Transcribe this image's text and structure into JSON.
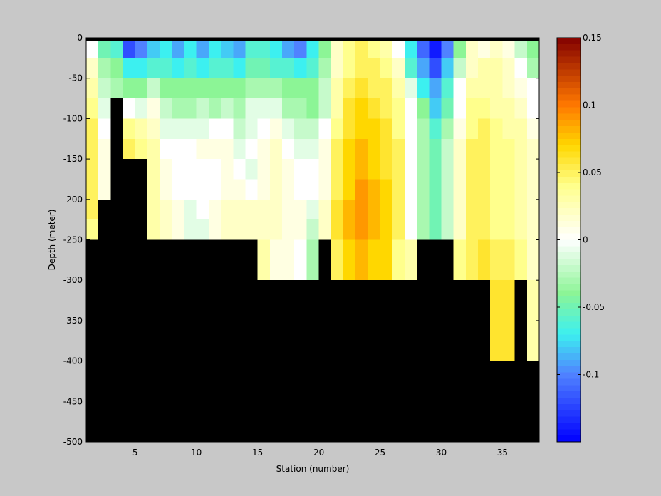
{
  "chart_data": {
    "type": "heatmap",
    "title": "",
    "xlabel": "Station (number)",
    "ylabel": "Depth (meter)",
    "x_range": [
      1,
      38
    ],
    "y_range": [
      -500,
      0
    ],
    "x_ticks": [
      5,
      10,
      15,
      20,
      25,
      30,
      35
    ],
    "y_ticks": [
      0,
      -50,
      -100,
      -150,
      -200,
      -250,
      -300,
      -350,
      -400,
      -450,
      -500
    ],
    "x_tick_labels": [
      "5",
      "10",
      "15",
      "20",
      "25",
      "30",
      "35"
    ],
    "y_tick_labels": [
      "0",
      "-50",
      "-100",
      "-150",
      "-200",
      "-250",
      "-300",
      "-350",
      "-400",
      "-450",
      "-500"
    ],
    "colorbar": {
      "range": [
        -0.15,
        0.15
      ],
      "ticks": [
        0.15,
        0.1,
        0.05,
        0,
        -0.05,
        -0.1
      ],
      "tick_labels": [
        "0.15",
        "0.1",
        "0.05",
        "0",
        "-0.05",
        "-0.1"
      ],
      "colormap": "jet-with-white-center"
    },
    "stations": [
      1,
      2,
      3,
      4,
      5,
      6,
      7,
      8,
      9,
      10,
      11,
      12,
      13,
      14,
      15,
      16,
      17,
      18,
      19,
      20,
      21,
      22,
      23,
      24,
      25,
      26,
      27,
      28,
      29,
      30,
      31,
      32,
      33,
      34,
      35,
      36,
      37
    ],
    "depths": [
      0,
      -25,
      -50,
      -75,
      -100,
      -125,
      -150,
      -175,
      -200,
      -225,
      -250,
      -275,
      -300,
      -325,
      -350,
      -375,
      -400,
      -425,
      -450,
      -475
    ],
    "no_data_color": "#000000",
    "values": [
      [
        0.0,
        -0.05,
        -0.06,
        -0.12,
        -0.1,
        -0.08,
        -0.07,
        -0.09,
        -0.07,
        -0.09,
        -0.07,
        -0.08,
        -0.09,
        -0.06,
        -0.06,
        -0.07,
        -0.09,
        -0.1,
        -0.07,
        -0.04,
        0.02,
        0.04,
        0.05,
        0.04,
        0.03,
        0.0,
        -0.07,
        -0.11,
        -0.14,
        -0.1,
        -0.04,
        0.02,
        0.01,
        0.02,
        0.01,
        -0.02,
        -0.04
      ],
      [
        0.02,
        -0.03,
        -0.04,
        -0.07,
        -0.07,
        -0.06,
        -0.06,
        -0.07,
        -0.06,
        -0.07,
        -0.06,
        -0.06,
        -0.07,
        -0.05,
        -0.05,
        -0.06,
        -0.06,
        -0.07,
        -0.06,
        -0.03,
        0.02,
        0.04,
        0.05,
        0.05,
        0.04,
        0.02,
        -0.06,
        -0.09,
        -0.12,
        -0.08,
        -0.02,
        0.02,
        0.03,
        0.03,
        0.02,
        0.0,
        -0.03
      ],
      [
        0.03,
        -0.02,
        -0.03,
        -0.04,
        -0.04,
        -0.02,
        -0.04,
        -0.04,
        -0.04,
        -0.04,
        -0.04,
        -0.04,
        -0.04,
        -0.03,
        -0.03,
        -0.03,
        -0.04,
        -0.04,
        -0.04,
        -0.02,
        0.03,
        0.05,
        0.06,
        0.05,
        0.05,
        0.03,
        -0.01,
        -0.07,
        -0.09,
        -0.06,
        0.0,
        0.03,
        0.03,
        0.03,
        0.02,
        0.01,
        0.0
      ],
      [
        0.04,
        -0.01,
        null,
        0.0,
        -0.01,
        0.01,
        -0.02,
        -0.03,
        -0.03,
        -0.02,
        -0.03,
        -0.02,
        -0.03,
        -0.01,
        -0.01,
        -0.01,
        -0.03,
        -0.03,
        -0.04,
        -0.02,
        0.03,
        0.06,
        0.07,
        0.06,
        0.05,
        0.04,
        0.0,
        -0.04,
        -0.08,
        -0.05,
        0.0,
        0.04,
        0.04,
        0.03,
        0.03,
        0.02,
        0.0
      ],
      [
        0.05,
        0.0,
        null,
        0.04,
        0.03,
        0.02,
        -0.01,
        -0.01,
        -0.01,
        -0.01,
        0.0,
        0.0,
        -0.02,
        -0.01,
        0.0,
        0.01,
        -0.01,
        -0.02,
        -0.02,
        0.0,
        0.04,
        0.06,
        0.07,
        0.07,
        0.06,
        0.04,
        0.0,
        -0.03,
        -0.06,
        -0.03,
        0.01,
        0.04,
        0.05,
        0.04,
        0.03,
        0.03,
        0.01
      ],
      [
        0.05,
        0.01,
        null,
        0.05,
        0.04,
        0.03,
        0.0,
        0.0,
        0.0,
        0.01,
        0.01,
        0.01,
        -0.01,
        0.0,
        0.01,
        0.02,
        0.0,
        -0.01,
        -0.01,
        0.01,
        0.05,
        0.07,
        0.08,
        0.07,
        0.06,
        0.05,
        0.0,
        -0.03,
        -0.05,
        -0.02,
        0.02,
        0.05,
        0.05,
        0.04,
        0.04,
        0.03,
        0.02
      ],
      [
        0.05,
        0.01,
        null,
        null,
        null,
        0.03,
        0.01,
        0.0,
        0.0,
        0.0,
        0.0,
        0.01,
        0.0,
        -0.01,
        0.01,
        0.02,
        0.01,
        0.0,
        0.0,
        0.01,
        0.05,
        0.07,
        0.08,
        0.07,
        0.06,
        0.05,
        0.0,
        -0.03,
        -0.05,
        -0.02,
        0.02,
        0.05,
        0.05,
        0.04,
        0.04,
        0.03,
        0.02
      ],
      [
        0.05,
        0.01,
        null,
        null,
        null,
        0.03,
        0.01,
        0.0,
        0.0,
        0.0,
        0.0,
        0.01,
        0.01,
        0.0,
        0.01,
        0.02,
        0.01,
        0.0,
        0.0,
        0.01,
        0.05,
        0.07,
        0.09,
        0.08,
        0.07,
        0.05,
        0.0,
        -0.03,
        -0.05,
        -0.02,
        0.02,
        0.05,
        0.05,
        0.04,
        0.04,
        0.03,
        0.02
      ],
      [
        0.05,
        null,
        null,
        null,
        null,
        0.03,
        0.02,
        0.01,
        -0.01,
        0.0,
        0.01,
        0.02,
        0.02,
        0.02,
        0.02,
        0.02,
        0.01,
        0.01,
        -0.01,
        0.02,
        0.06,
        0.08,
        0.09,
        0.08,
        0.07,
        0.05,
        0.0,
        -0.03,
        -0.05,
        -0.02,
        0.02,
        0.05,
        0.05,
        0.04,
        0.04,
        0.03,
        0.02
      ],
      [
        0.04,
        null,
        null,
        null,
        null,
        0.03,
        0.02,
        0.01,
        -0.01,
        -0.01,
        0.01,
        0.02,
        0.02,
        0.02,
        0.02,
        0.02,
        0.01,
        0.01,
        -0.02,
        0.02,
        0.06,
        0.08,
        0.09,
        0.08,
        0.07,
        0.05,
        0.0,
        -0.03,
        -0.05,
        -0.02,
        0.02,
        0.05,
        0.05,
        0.04,
        0.04,
        0.03,
        0.02
      ],
      [
        null,
        null,
        null,
        null,
        null,
        null,
        null,
        null,
        null,
        null,
        null,
        null,
        null,
        null,
        0.03,
        0.01,
        0.01,
        0.0,
        -0.03,
        null,
        0.05,
        0.07,
        0.08,
        0.07,
        0.07,
        0.04,
        0.03,
        null,
        null,
        null,
        0.04,
        0.05,
        0.06,
        0.05,
        0.05,
        0.04,
        0.02
      ],
      [
        null,
        null,
        null,
        null,
        null,
        null,
        null,
        null,
        null,
        null,
        null,
        null,
        null,
        null,
        0.03,
        0.01,
        0.01,
        0.0,
        -0.03,
        null,
        0.05,
        0.07,
        0.08,
        0.07,
        0.07,
        0.04,
        0.03,
        null,
        null,
        null,
        0.04,
        0.05,
        0.06,
        0.05,
        0.05,
        0.04,
        0.02
      ],
      [
        null,
        null,
        null,
        null,
        null,
        null,
        null,
        null,
        null,
        null,
        null,
        null,
        null,
        null,
        null,
        null,
        null,
        null,
        null,
        null,
        null,
        null,
        null,
        null,
        null,
        null,
        null,
        null,
        null,
        null,
        null,
        null,
        null,
        0.06,
        0.06,
        null,
        0.03
      ],
      [
        null,
        null,
        null,
        null,
        null,
        null,
        null,
        null,
        null,
        null,
        null,
        null,
        null,
        null,
        null,
        null,
        null,
        null,
        null,
        null,
        null,
        null,
        null,
        null,
        null,
        null,
        null,
        null,
        null,
        null,
        null,
        null,
        null,
        0.06,
        0.06,
        null,
        0.03
      ],
      [
        null,
        null,
        null,
        null,
        null,
        null,
        null,
        null,
        null,
        null,
        null,
        null,
        null,
        null,
        null,
        null,
        null,
        null,
        null,
        null,
        null,
        null,
        null,
        null,
        null,
        null,
        null,
        null,
        null,
        null,
        null,
        null,
        null,
        0.06,
        0.06,
        null,
        0.03
      ],
      [
        null,
        null,
        null,
        null,
        null,
        null,
        null,
        null,
        null,
        null,
        null,
        null,
        null,
        null,
        null,
        null,
        null,
        null,
        null,
        null,
        null,
        null,
        null,
        null,
        null,
        null,
        null,
        null,
        null,
        null,
        null,
        null,
        null,
        0.06,
        0.06,
        null,
        0.03
      ],
      [
        null,
        null,
        null,
        null,
        null,
        null,
        null,
        null,
        null,
        null,
        null,
        null,
        null,
        null,
        null,
        null,
        null,
        null,
        null,
        null,
        null,
        null,
        null,
        null,
        null,
        null,
        null,
        null,
        null,
        null,
        null,
        null,
        null,
        null,
        null,
        null,
        null
      ],
      [
        null,
        null,
        null,
        null,
        null,
        null,
        null,
        null,
        null,
        null,
        null,
        null,
        null,
        null,
        null,
        null,
        null,
        null,
        null,
        null,
        null,
        null,
        null,
        null,
        null,
        null,
        null,
        null,
        null,
        null,
        null,
        null,
        null,
        null,
        null,
        null,
        null
      ],
      [
        null,
        null,
        null,
        null,
        null,
        null,
        null,
        null,
        null,
        null,
        null,
        null,
        null,
        null,
        null,
        null,
        null,
        null,
        null,
        null,
        null,
        null,
        null,
        null,
        null,
        null,
        null,
        null,
        null,
        null,
        null,
        null,
        null,
        null,
        null,
        null,
        null
      ],
      [
        null,
        null,
        null,
        null,
        null,
        null,
        null,
        null,
        null,
        null,
        null,
        null,
        null,
        null,
        null,
        null,
        null,
        null,
        null,
        null,
        null,
        null,
        null,
        null,
        null,
        null,
        null,
        null,
        null,
        null,
        null,
        null,
        null,
        null,
        null,
        null,
        null
      ]
    ]
  }
}
